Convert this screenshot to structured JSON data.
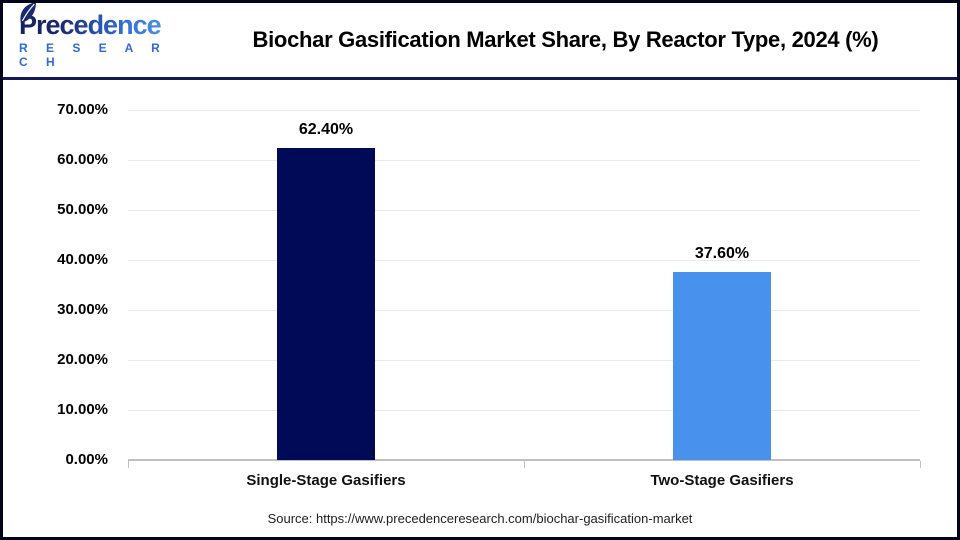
{
  "header": {
    "logo": {
      "name": "Precedence",
      "subtitle": "R E S E A R C H"
    },
    "title": "Biochar Gasification Market Share, By Reactor Type, 2024 (%)"
  },
  "chart_data": {
    "type": "bar",
    "title": "Biochar Gasification Market Share, By Reactor Type, 2024 (%)",
    "categories": [
      "Single-Stage Gasifiers",
      "Two-Stage Gasifiers"
    ],
    "values": [
      62.4,
      37.6
    ],
    "value_labels": [
      "62.40%",
      "37.60%"
    ],
    "bar_colors": [
      "#010a56",
      "#4892ee"
    ],
    "xlabel": "",
    "ylabel": "",
    "ylim": [
      0,
      70
    ],
    "yticks": [
      0,
      10,
      20,
      30,
      40,
      50,
      60,
      70
    ],
    "ytick_labels": [
      "0.00%",
      "10.00%",
      "20.00%",
      "30.00%",
      "40.00%",
      "50.00%",
      "60.00%",
      "70.00%"
    ],
    "grid": true,
    "legend": "none"
  },
  "footer": {
    "source": "Source: https://www.precedenceresearch.com/biochar-gasification-market"
  },
  "colors": {
    "bar_primary": "#010a56",
    "bar_secondary": "#4892ee",
    "header_divider": "#131a55",
    "gridline": "#eaeaea",
    "axis_line": "#c0c0c0",
    "logo_blue": "#2e6bd6"
  }
}
